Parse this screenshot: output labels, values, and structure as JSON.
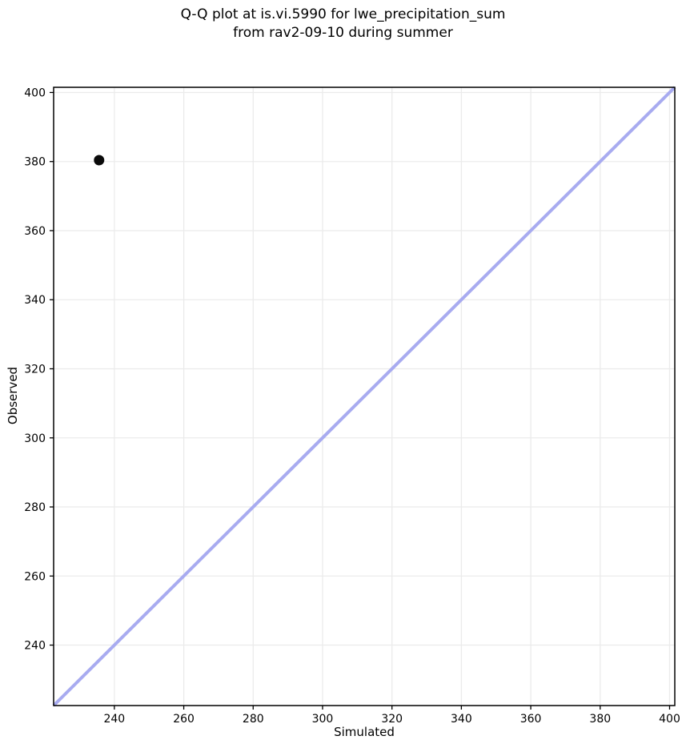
{
  "figure": {
    "title_lines": [
      "Q-Q plot at is.vi.5990 for lwe_precipitation_sum",
      "from rav2-09-10 during summer"
    ]
  },
  "chart_data": {
    "type": "scatter",
    "title": "Q-Q plot at is.vi.5990 for lwe_precipitation_sum\nfrom rav2-09-10 during summer",
    "xlabel": "Simulated",
    "ylabel": "Observed",
    "xlim": [
      222.5,
      401.5
    ],
    "ylim": [
      222.5,
      401.5
    ],
    "xticks": [
      240,
      260,
      280,
      300,
      320,
      340,
      360,
      380,
      400
    ],
    "yticks": [
      240,
      260,
      280,
      300,
      320,
      340,
      360,
      380,
      400
    ],
    "grid": true,
    "legend": false,
    "series": [
      {
        "name": "identity-line",
        "kind": "line",
        "color": "#a8abf0",
        "line_width": 4,
        "points": [
          [
            222.5,
            222.5
          ],
          [
            401.5,
            401.5
          ]
        ]
      },
      {
        "name": "quantile-points",
        "kind": "scatter",
        "marker": "circle",
        "marker_radius": 6.5,
        "color": "#0a0a0a",
        "points": [
          [
            235.6,
            380.4
          ]
        ]
      }
    ],
    "colors": {
      "background": "#ffffff",
      "grid": "#ebebeb",
      "spine": "#000000",
      "tick": "#000000",
      "tick_label": "#000000"
    }
  }
}
